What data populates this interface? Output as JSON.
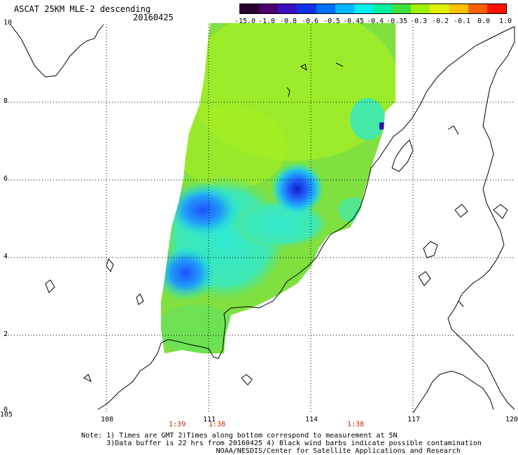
{
  "header": {
    "title": "ASCAT 25KM MLE-2 descending",
    "date": "20160425"
  },
  "colorbar": {
    "labels": [
      "-15.0",
      "-1.0",
      "-0.8",
      "-0.6",
      "-0.5",
      "-0.45",
      "-0.4",
      "-0.35",
      "-0.3",
      "-0.2",
      "-0.1",
      "0.0",
      "1.0"
    ],
    "colors": [
      "#2a0030",
      "#4a0070",
      "#3a10c0",
      "#1030e8",
      "#0070ff",
      "#00b8ff",
      "#00f0f0",
      "#00f0a0",
      "#40e040",
      "#a0f000",
      "#e0f000",
      "#ffc000",
      "#ff6000",
      "#ff1000"
    ]
  },
  "axes": {
    "x_ticks": [
      "105",
      "108",
      "111",
      "114",
      "117",
      "120"
    ],
    "y_ticks": [
      "0",
      "2",
      "4",
      "6",
      "8",
      "10"
    ]
  },
  "times": [
    "1:39",
    "1:38",
    "1:38"
  ],
  "notes": [
    "Note: 1) Times are GMT 2)Times along bottom correspond to measurement at 5N",
    "      3)Data buffer is 22 hrs from 20160425 4) Black wind barbs indicate possible contamination",
    "                                NOAA/NESDIS/Center for Satellite Applications and Research"
  ],
  "colors": {
    "swath_green": "#80e040",
    "swath_yellowgreen": "#a8f020",
    "swath_cyan": "#20f0e0",
    "swath_blue": "#2060ff",
    "swath_darkblue": "#1020c0"
  }
}
